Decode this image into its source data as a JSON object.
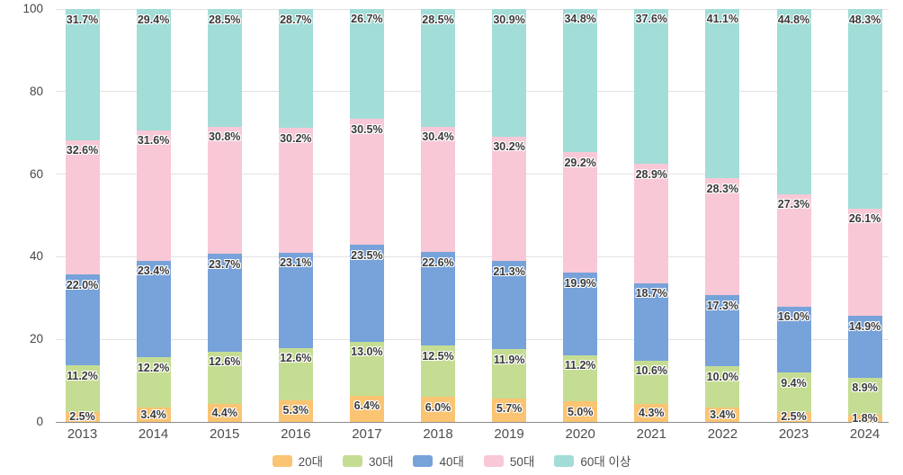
{
  "chart_data": {
    "type": "bar",
    "stacked": true,
    "orientation": "vertical",
    "categories": [
      "2013",
      "2014",
      "2015",
      "2016",
      "2017",
      "2018",
      "2019",
      "2020",
      "2021",
      "2022",
      "2023",
      "2024"
    ],
    "series": [
      {
        "name": "20대",
        "color": "#FAC472",
        "values": [
          2.5,
          3.4,
          4.4,
          5.3,
          6.4,
          6.0,
          5.7,
          5.0,
          4.3,
          3.4,
          2.5,
          1.8
        ]
      },
      {
        "name": "30대",
        "color": "#C5DD93",
        "values": [
          11.2,
          12.2,
          12.6,
          12.6,
          13.0,
          12.5,
          11.9,
          11.2,
          10.6,
          10.0,
          9.4,
          8.9
        ]
      },
      {
        "name": "40대",
        "color": "#77A2DA",
        "values": [
          22.0,
          23.4,
          23.7,
          23.1,
          23.5,
          22.6,
          21.3,
          19.9,
          18.7,
          17.3,
          16.0,
          14.9
        ]
      },
      {
        "name": "50대",
        "color": "#F8C8D6",
        "values": [
          32.6,
          31.6,
          30.8,
          30.2,
          30.5,
          30.4,
          30.2,
          29.2,
          28.9,
          28.3,
          27.3,
          26.1
        ]
      },
      {
        "name": "60대 이상",
        "color": "#A2DDD8",
        "values": [
          31.7,
          29.4,
          28.5,
          28.7,
          26.7,
          28.5,
          30.9,
          34.8,
          37.6,
          41.1,
          44.8,
          48.3
        ]
      }
    ],
    "title": "",
    "xlabel": "",
    "ylabel": "",
    "ylim": [
      0,
      100
    ],
    "yticks": [
      0,
      20,
      40,
      60,
      80,
      100
    ],
    "grid": true,
    "value_suffix": "%",
    "legend_position": "bottom",
    "style": {
      "grid_color": "#e2e2e2",
      "baseline_color": "#8c8c8c",
      "value_label_color": "#3a3a3a",
      "axis_label_color": "#4e4e4e",
      "background": "#ffffff"
    }
  }
}
